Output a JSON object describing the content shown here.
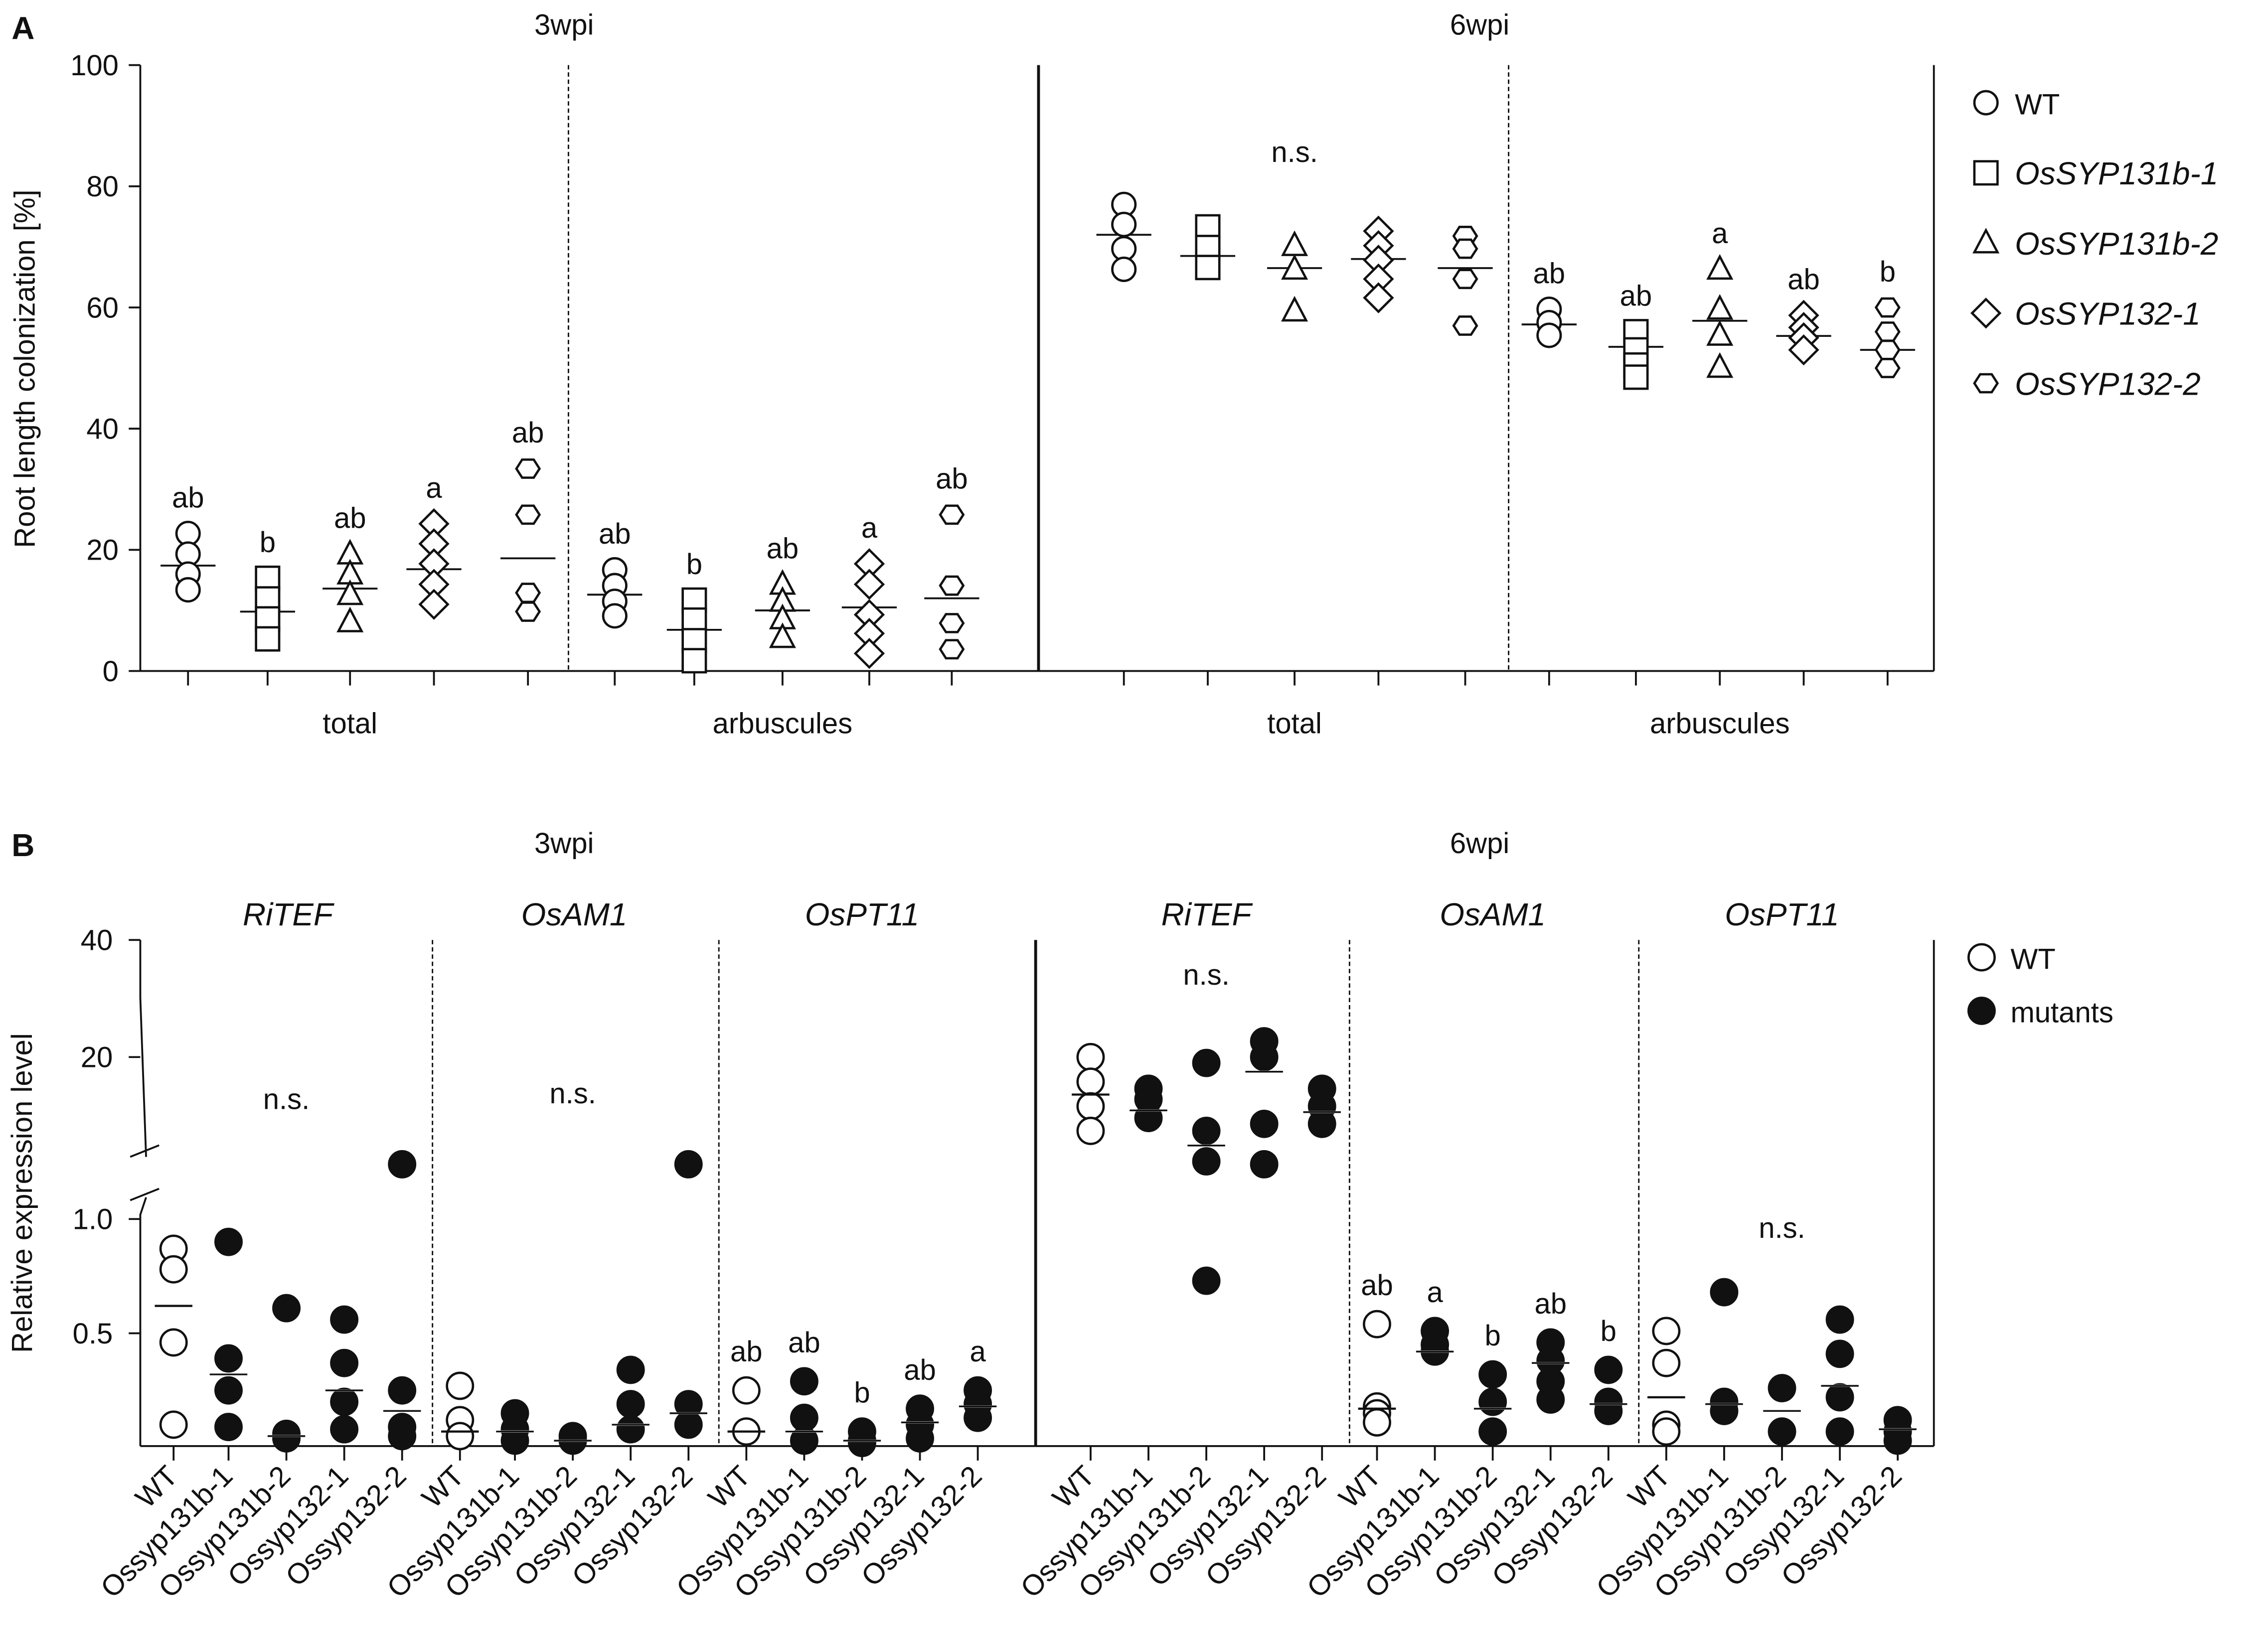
{
  "chart_data": [
    {
      "type": "scatter",
      "panel_label": "A",
      "ylabel": "Root length colonization [%]",
      "ylim": [
        0,
        100
      ],
      "yticks": [
        "0",
        "20",
        "40",
        "60",
        "80",
        "100"
      ],
      "legend": {
        "placement": "right",
        "entries": [
          {
            "marker": "circle",
            "label": "WT",
            "italic": false
          },
          {
            "marker": "square",
            "label": "OsSYP131b-1",
            "italic": true
          },
          {
            "marker": "triangle",
            "label": "OsSYP131b-2",
            "italic": true
          },
          {
            "marker": "diamond",
            "label": "OsSYP132-1",
            "italic": true
          },
          {
            "marker": "hexagon",
            "label": "OsSYP132-2",
            "italic": true
          }
        ]
      },
      "timepoints": [
        "3wpi",
        "6wpi"
      ],
      "groups": [
        {
          "timepoint": "3wpi",
          "name": "total",
          "series": [
            {
              "values": [
                22.7,
                19.3,
                16,
                13.4
              ],
              "mean": 17.4,
              "letter": "ab"
            },
            {
              "values": [
                15.3,
                11.9,
                8.6,
                5.3
              ],
              "mean": 9.8,
              "letter": "b"
            },
            {
              "values": [
                19.3,
                16,
                12.6,
                8.1
              ],
              "mean": 13.6,
              "letter": "ab"
            },
            {
              "values": [
                24.3,
                21,
                17.7,
                14.3,
                11
              ],
              "mean": 16.8,
              "letter": "a"
            },
            {
              "values": [
                33.4,
                25.8,
                12.9,
                9.8
              ],
              "mean": 18.6,
              "letter": "ab"
            }
          ]
        },
        {
          "timepoint": "3wpi",
          "name": "arbuscules",
          "series": [
            {
              "values": [
                16.7,
                14.1,
                11.5,
                9.1
              ],
              "mean": 12.6,
              "letter": "ab"
            },
            {
              "values": [
                11.7,
                8.4,
                5,
                1.7
              ],
              "mean": 6.8,
              "letter": "b"
            },
            {
              "values": [
                14.3,
                11.5,
                8.6,
                5.5
              ],
              "mean": 10,
              "letter": "ab"
            },
            {
              "values": [
                17.7,
                14.3,
                9.3,
                6.2,
                2.9
              ],
              "mean": 10.5,
              "letter": "a"
            },
            {
              "values": [
                25.8,
                14.1,
                7.9,
                3.6
              ],
              "mean": 12,
              "letter": "ab"
            }
          ]
        },
        {
          "timepoint": "6wpi",
          "name": "total",
          "annotation": "n.s.",
          "series": [
            {
              "values": [
                77,
                73.7,
                69.7,
                66.3
              ],
              "mean": 72,
              "letter": ""
            },
            {
              "values": [
                73.3,
                69.9,
                66.6
              ],
              "mean": 68.5,
              "letter": ""
            },
            {
              "values": [
                70.2,
                66.3,
                59.4
              ],
              "mean": 66.5,
              "letter": ""
            },
            {
              "values": [
                72.6,
                70.2,
                67.8,
                64.7,
                61.6
              ],
              "mean": 68,
              "letter": ""
            },
            {
              "values": [
                71.8,
                69.7,
                64.7,
                57
              ],
              "mean": 66.5,
              "letter": ""
            }
          ]
        },
        {
          "timepoint": "6wpi",
          "name": "arbuscules",
          "series": [
            {
              "values": [
                59.7,
                57.5,
                55.4
              ],
              "mean": 57.2,
              "letter": "ab"
            },
            {
              "values": [
                56,
                53,
                50.5,
                48.5
              ],
              "mean": 53.5,
              "letter": "ab"
            },
            {
              "values": [
                66.3,
                59.7,
                55.4,
                50.1
              ],
              "mean": 57.8,
              "letter": "a"
            },
            {
              "values": [
                58.7,
                56.7,
                55,
                53
              ],
              "mean": 55.3,
              "letter": "ab"
            },
            {
              "values": [
                60,
                56,
                53,
                50
              ],
              "mean": 53,
              "letter": "b"
            }
          ]
        }
      ]
    },
    {
      "type": "scatter",
      "panel_label": "B",
      "ylabel": "Relative expression level",
      "yaxis_break": [
        1.2,
        2
      ],
      "yticks": [
        "0.5",
        "1.0",
        "20",
        "40"
      ],
      "legend": {
        "placement": "right",
        "entries": [
          {
            "marker": "open-circle",
            "label": "WT"
          },
          {
            "marker": "filled-circle",
            "label": "mutants"
          }
        ]
      },
      "timepoints": [
        "3wpi",
        "6wpi"
      ],
      "categories": [
        "WT",
        "Ossyp131b-1",
        "Ossyp131b-2",
        "Ossyp132-1",
        "Ossyp132-2"
      ],
      "groups": [
        {
          "timepoint": "3wpi",
          "gene": "RiTEF",
          "annotation": "n.s.",
          "series": [
            {
              "values": [
                0.87,
                0.78,
                0.46,
                0.1
              ],
              "mean": 0.62,
              "letter": ""
            },
            {
              "values": [
                0.9,
                0.39,
                0.25,
                0.09
              ],
              "mean": 0.32,
              "letter": ""
            },
            {
              "values": [
                0.61,
                0.06,
                0.04
              ],
              "mean": 0.05,
              "letter": ""
            },
            {
              "values": [
                0.56,
                0.37,
                0.2,
                0.08
              ],
              "mean": 0.25,
              "letter": ""
            },
            {
              "values": [
                1.7,
                0.25,
                0.09,
                0.05
              ],
              "mean": 0.16,
              "letter": ""
            }
          ]
        },
        {
          "timepoint": "3wpi",
          "gene": "OsAM1",
          "annotation": "n.s.",
          "series": [
            {
              "values": [
                0.27,
                0.12,
                0.05
              ],
              "mean": 0.07,
              "letter": ""
            },
            {
              "values": [
                0.15,
                0.08,
                0.03
              ],
              "mean": 0.07,
              "letter": ""
            },
            {
              "values": [
                0.05,
                0.03
              ],
              "mean": 0.03,
              "letter": ""
            },
            {
              "values": [
                0.34,
                0.19,
                0.08
              ],
              "mean": 0.1,
              "letter": ""
            },
            {
              "values": [
                1.7,
                0.19,
                0.1
              ],
              "mean": 0.15,
              "letter": ""
            }
          ]
        },
        {
          "timepoint": "3wpi",
          "gene": "OsPT11",
          "series": [
            {
              "values": [
                0.25,
                0.07
              ],
              "mean": 0.07,
              "letter": "ab"
            },
            {
              "values": [
                0.29,
                0.13,
                0.03
              ],
              "mean": 0.07,
              "letter": "ab"
            },
            {
              "values": [
                0.07,
                0.03,
                0.02
              ],
              "mean": 0.03,
              "letter": "b"
            },
            {
              "values": [
                0.17,
                0.1,
                0.04
              ],
              "mean": 0.11,
              "letter": "ab"
            },
            {
              "values": [
                0.25,
                0.19,
                0.13
              ],
              "mean": 0.18,
              "letter": "a"
            }
          ]
        },
        {
          "timepoint": "6wpi",
          "gene": "RiTEF",
          "annotation": "n.s.",
          "series": [
            {
              "values": [
                20,
                15.8,
                11.6,
                7.4
              ],
              "mean": 13.6,
              "letter": ""
            },
            {
              "values": [
                14.6,
                12.8,
                9.6
              ],
              "mean": 10.9,
              "letter": ""
            },
            {
              "values": [
                19,
                7.4,
                2.2,
                0.73
              ],
              "mean": 4.9,
              "letter": ""
            },
            {
              "values": [
                22.7,
                20,
                8.6,
                1.7
              ],
              "mean": 17.5,
              "letter": ""
            },
            {
              "values": [
                14.6,
                11.6,
                8.6
              ],
              "mean": 10.6,
              "letter": ""
            }
          ]
        },
        {
          "timepoint": "6wpi",
          "gene": "OsAM1",
          "series": [
            {
              "values": [
                0.54,
                0.18,
                0.15,
                0.11
              ],
              "mean": 0.17,
              "letter": "ab"
            },
            {
              "values": [
                0.51,
                0.45,
                0.42
              ],
              "mean": 0.42,
              "letter": "a"
            },
            {
              "values": [
                0.32,
                0.2,
                0.07
              ],
              "mean": 0.17,
              "letter": "b"
            },
            {
              "values": [
                0.46,
                0.38,
                0.29,
                0.21
              ],
              "mean": 0.37,
              "letter": "ab"
            },
            {
              "values": [
                0.34,
                0.2,
                0.16
              ],
              "mean": 0.19,
              "letter": "b"
            }
          ]
        },
        {
          "timepoint": "6wpi",
          "gene": "OsPT11",
          "annotation": "n.s.",
          "series": [
            {
              "values": [
                0.51,
                0.37,
                0.1,
                0.07
              ],
              "mean": 0.22,
              "letter": ""
            },
            {
              "values": [
                0.68,
                0.2,
                0.16
              ],
              "mean": 0.19,
              "letter": ""
            },
            {
              "values": [
                0.26,
                0.07
              ],
              "mean": 0.16,
              "letter": ""
            },
            {
              "values": [
                0.56,
                0.41,
                0.22,
                0.07
              ],
              "mean": 0.27,
              "letter": ""
            },
            {
              "values": [
                0.12,
                0.07,
                0.03
              ],
              "mean": 0.08,
              "letter": ""
            }
          ]
        }
      ]
    }
  ]
}
